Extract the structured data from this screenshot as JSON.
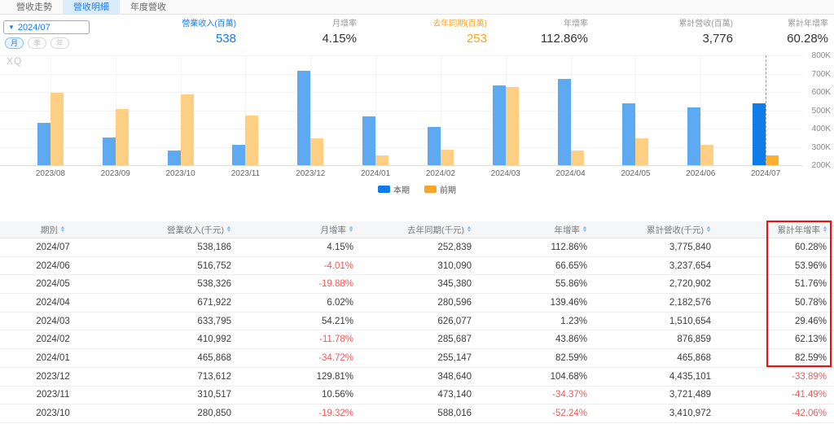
{
  "tabs": {
    "items": [
      {
        "key": "revenue-trend",
        "label": "營收走勢",
        "active": false
      },
      {
        "key": "revenue-detail",
        "label": "營收明細",
        "active": true
      },
      {
        "key": "annual-revenue",
        "label": "年度營收",
        "active": false
      }
    ]
  },
  "controls": {
    "period_select": {
      "value": "2024/07"
    },
    "granularity": [
      {
        "key": "month",
        "label": "月",
        "active": true
      },
      {
        "key": "quarter",
        "label": "季",
        "active": false
      },
      {
        "key": "year",
        "label": "年",
        "active": false
      }
    ]
  },
  "stats": [
    {
      "key": "revenue-mm",
      "label": "營業收入(百萬)",
      "value": "538",
      "color": "blue"
    },
    {
      "key": "mom-rate",
      "label": "月增率",
      "value": "4.15%",
      "color": "plain"
    },
    {
      "key": "last-year-mm",
      "label": "去年同期(百萬)",
      "value": "253",
      "color": "orange"
    },
    {
      "key": "yoy-rate",
      "label": "年增率",
      "value": "112.86%",
      "color": "plain"
    },
    {
      "key": "cum-revenue",
      "label": "累計營收(百萬)",
      "value": "3,776",
      "color": "plain"
    },
    {
      "key": "cum-yoy-rate",
      "label": "累計年增率",
      "value": "60.28%",
      "color": "plain"
    }
  ],
  "watermark": "XQ",
  "chart_data": {
    "type": "bar",
    "title": "",
    "categories": [
      "2023/08",
      "2023/09",
      "2023/10",
      "2023/11",
      "2023/12",
      "2024/01",
      "2024/02",
      "2024/03",
      "2024/04",
      "2024/05",
      "2024/06",
      "2024/07"
    ],
    "series": [
      {
        "name": "本期",
        "values": [
          430000,
          352000,
          280850,
          310517,
          713612,
          465868,
          410992,
          633795,
          671922,
          538326,
          516752,
          538186
        ]
      },
      {
        "name": "前期",
        "values": [
          597000,
          505000,
          588016,
          473140,
          348640,
          255147,
          285687,
          626077,
          280596,
          345380,
          310090,
          252839
        ]
      }
    ],
    "ylim": [
      200000,
      800000
    ],
    "y_ticks": [
      "800K",
      "700K",
      "600K",
      "500K",
      "400K",
      "300K",
      "200K"
    ],
    "y_axis_position": "right",
    "grid": true,
    "legend_position": "bottom-center",
    "highlight_index": 11,
    "highlight_marker": "dashed-vertical-line",
    "colors": {
      "current": "#5da9f2",
      "previous": "#ffd084",
      "current_highlight": "#0d7be8",
      "previous_highlight": "#ffaf2f"
    }
  },
  "table": {
    "columns": [
      {
        "key": "period",
        "label": "期別",
        "sortable": true
      },
      {
        "key": "revenue",
        "label": "營業收入(千元)",
        "sortable": true
      },
      {
        "key": "mom",
        "label": "月增率",
        "sortable": true
      },
      {
        "key": "yoy-same",
        "label": "去年同期(千元)",
        "sortable": true
      },
      {
        "key": "yoy",
        "label": "年增率",
        "sortable": true
      },
      {
        "key": "cum-revenue",
        "label": "累計營收(千元)",
        "sortable": true
      },
      {
        "key": "cum-yoy",
        "label": "累計年增率",
        "sortable": true
      }
    ],
    "rows": [
      [
        "2024/07",
        "538,186",
        "4.15%",
        "252,839",
        "112.86%",
        "3,775,840",
        "60.28%"
      ],
      [
        "2024/06",
        "516,752",
        "-4.01%",
        "310,090",
        "66.65%",
        "3,237,654",
        "53.96%"
      ],
      [
        "2024/05",
        "538,326",
        "-19.88%",
        "345,380",
        "55.86%",
        "2,720,902",
        "51.76%"
      ],
      [
        "2024/04",
        "671,922",
        "6.02%",
        "280,596",
        "139.46%",
        "2,182,576",
        "50.78%"
      ],
      [
        "2024/03",
        "633,795",
        "54.21%",
        "626,077",
        "1.23%",
        "1,510,654",
        "29.46%"
      ],
      [
        "2024/02",
        "410,992",
        "-11.78%",
        "285,687",
        "43.86%",
        "876,859",
        "62.13%"
      ],
      [
        "2024/01",
        "465,868",
        "-34.72%",
        "255,147",
        "82.59%",
        "465,868",
        "82.59%"
      ],
      [
        "2023/12",
        "713,612",
        "129.81%",
        "348,640",
        "104.68%",
        "4,435,101",
        "-33.89%"
      ],
      [
        "2023/11",
        "310,517",
        "10.56%",
        "473,140",
        "-34.37%",
        "3,721,489",
        "-41.49%"
      ],
      [
        "2023/10",
        "280,850",
        "-19.32%",
        "588,016",
        "-52.24%",
        "3,410,972",
        "-42.06%"
      ]
    ],
    "highlight": {
      "column": "累計年增率",
      "rows_covered": [
        "2024/07",
        "2024/01"
      ],
      "border_color": "#f00d0d"
    },
    "negative_color": "#f05a5a"
  }
}
